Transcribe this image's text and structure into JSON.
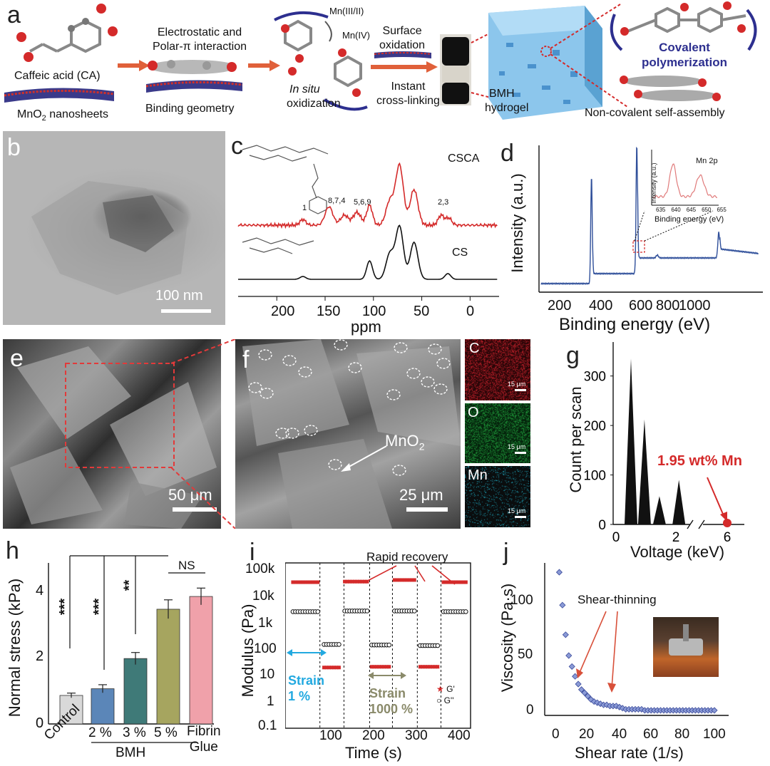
{
  "panel_labels": {
    "a": "a",
    "b": "b",
    "c": "c",
    "d": "d",
    "e": "e",
    "f": "f",
    "g": "g",
    "h": "h",
    "i": "i",
    "j": "j"
  },
  "panel_a": {
    "caffeic_acid": "Caffeic acid (CA)",
    "mno2_nanosheets": "MnO",
    "mno2_sub": "2",
    "mno2_suffix": " nanosheets",
    "electrostatic_line1": "Electrostatic and",
    "electrostatic_line2": "Polar-π interaction",
    "binding_geometry": "Binding geometry",
    "mn_iii_ii": "Mn(III/II)",
    "mn_iv": "Mn(IV)",
    "in_situ": "In situ",
    "oxidization": "oxidization",
    "surface_oxidation_1": "Surface",
    "surface_oxidation_2": "oxidation",
    "instant_1": "Instant",
    "instant_2": "cross-linking",
    "bmh_1": "BMH",
    "bmh_2": "hydrogel",
    "covalent_1": "Covalent",
    "covalent_2": "polymerization",
    "noncovalent": "Non-covalent self-assembly"
  },
  "panel_b": {
    "scale": "100 nm"
  },
  "panel_c": {
    "label_csca": "CSCA",
    "label_cs": "CS",
    "peak_1": "1",
    "peak_874": "8,7,4",
    "peak_569": "5,6,9",
    "peak_23": "2,3",
    "xlabel": "ppm",
    "ticks": [
      "200",
      "150",
      "100",
      "50",
      "0"
    ]
  },
  "panel_d": {
    "ylabel": "Intensity (a.u.)",
    "xlabel": "Binding energy (eV)",
    "ticks": [
      "200",
      "400",
      "600",
      "800",
      "1000"
    ],
    "inset_title": "Mn 2p",
    "inset_ylabel": "Intensity (a.u.)",
    "inset_xlabel": "Binding energy (eV)",
    "inset_ticks": [
      "635",
      "640",
      "645",
      "650",
      "655"
    ]
  },
  "panel_e": {
    "scale": "50 μm"
  },
  "panel_f": {
    "scale": "25 μm",
    "mno2": "MnO",
    "mno2_sub": "2"
  },
  "panel_maps": {
    "c_label": "C",
    "o_label": "O",
    "mn_label": "Mn",
    "scale": "15 μm",
    "c_color": "#c0202a",
    "o_color": "#1f9a3a",
    "mn_color": "#20b0c8"
  },
  "panel_g": {
    "ylabel": "Count per scan",
    "xlabel": "Voltage (keV)",
    "yticks": [
      "0",
      "100",
      "200",
      "300"
    ],
    "xticks": [
      "0",
      "2",
      "6"
    ],
    "annotation": "1.95 wt% Mn",
    "annotation_color": "#d42a2a"
  },
  "panel_h": {
    "ylabel": "Normal stress (kPa)",
    "yticks": [
      "0",
      "2",
      "4"
    ],
    "categories": [
      "Control",
      "2 %",
      "3 %",
      "5 %",
      "Fibrin\nGlue"
    ],
    "group_label": "BMH",
    "sig_1": "***",
    "sig_2": "***",
    "sig_3": "**",
    "sig_ns": "NS"
  },
  "panel_i": {
    "ylabel": "Modulus (Pa)",
    "xlabel": "Time (s)",
    "yticks": [
      "100k",
      "10k",
      "1k",
      "100",
      "10",
      "1",
      "0.1"
    ],
    "xticks": [
      "100",
      "200",
      "300",
      "400"
    ],
    "rapid_recovery": "Rapid recovery",
    "strain_1_a": "Strain",
    "strain_1_b": "1 %",
    "strain_2_a": "Strain",
    "strain_2_b": "1000 %",
    "legend_g1": "G'",
    "legend_g2": "G''",
    "strain1_color": "#22a9e0",
    "strain2_color": "#8a8a6a"
  },
  "panel_j": {
    "ylabel": "Viscosity (Pa·s)",
    "xlabel": "Shear rate (1/s)",
    "yticks": [
      "0",
      "50",
      "100"
    ],
    "xticks": [
      "0",
      "20",
      "40",
      "60",
      "80",
      "100"
    ],
    "shear_thinning": "Shear-thinning"
  },
  "chart_data": [
    {
      "type": "bar",
      "panel": "h",
      "categories": [
        "Control",
        "2 %",
        "3 %",
        "5 %",
        "Fibrin Glue"
      ],
      "values": [
        0.85,
        1.05,
        1.95,
        3.42,
        3.8
      ],
      "errors": [
        0.07,
        0.12,
        0.18,
        0.28,
        0.25
      ],
      "colors": [
        "#d9d9d9",
        "#5b86b8",
        "#3f7a78",
        "#a6a55f",
        "#f0a1aa"
      ],
      "ylabel": "Normal stress (kPa)",
      "ylim": [
        0,
        4.8
      ]
    },
    {
      "type": "bar",
      "panel": "g",
      "x": [
        0.5,
        0.95,
        1.45,
        2.1
      ],
      "values": [
        335,
        212,
        57,
        90
      ],
      "ylabel": "Count per scan",
      "xlabel": "Voltage (keV)",
      "ylim": [
        0,
        360
      ]
    },
    {
      "type": "scatter",
      "panel": "i",
      "xlabel": "Time (s)",
      "ylabel": "Modulus (Pa)",
      "log_y": true,
      "series": [
        {
          "name": "G'",
          "segments": [
            {
              "x": [
                5,
                65
              ],
              "y": 20000
            },
            {
              "x": [
                80,
                120
              ],
              "y": 16
            },
            {
              "x": [
                130,
                185
              ],
              "y": 21000
            },
            {
              "x": [
                195,
                240
              ],
              "y": 17
            },
            {
              "x": [
                250,
                300
              ],
              "y": 24000
            },
            {
              "x": [
                312,
                358
              ],
              "y": 17
            },
            {
              "x": [
                368,
                425
              ],
              "y": 20000
            }
          ]
        },
        {
          "name": "G''",
          "segments": [
            {
              "x": [
                5,
                65
              ],
              "y": 1700
            },
            {
              "x": [
                80,
                120
              ],
              "y": 110
            },
            {
              "x": [
                130,
                185
              ],
              "y": 1800
            },
            {
              "x": [
                195,
                240
              ],
              "y": 105
            },
            {
              "x": [
                250,
                300
              ],
              "y": 1800
            },
            {
              "x": [
                312,
                358
              ],
              "y": 100
            },
            {
              "x": [
                368,
                425
              ],
              "y": 1700
            }
          ]
        }
      ]
    },
    {
      "type": "scatter",
      "panel": "j",
      "xlabel": "Shear rate (1/s)",
      "ylabel": "Viscosity (Pa·s)",
      "x": [
        2,
        4,
        6,
        8,
        10,
        12,
        14,
        16,
        18,
        20,
        22,
        24,
        26,
        28,
        30,
        32,
        34,
        36,
        38,
        40,
        42,
        44,
        46,
        48,
        50,
        52,
        54,
        56,
        58,
        60,
        62,
        64,
        66,
        68,
        70,
        72,
        74,
        76,
        78,
        80,
        82,
        84,
        86,
        88,
        90,
        92,
        94,
        96,
        98,
        100
      ],
      "values": [
        128,
        98,
        71,
        52,
        42,
        33,
        26,
        21,
        18,
        15,
        12,
        10,
        9,
        8,
        7,
        7,
        6,
        6,
        6,
        5,
        4,
        3,
        3,
        3,
        3,
        3,
        3,
        2,
        2,
        2,
        2,
        2,
        2,
        2,
        2,
        2,
        2,
        2,
        2,
        2,
        2,
        2,
        2,
        2,
        2,
        2,
        2,
        2,
        2,
        2
      ],
      "ylim": [
        0,
        135
      ]
    }
  ]
}
